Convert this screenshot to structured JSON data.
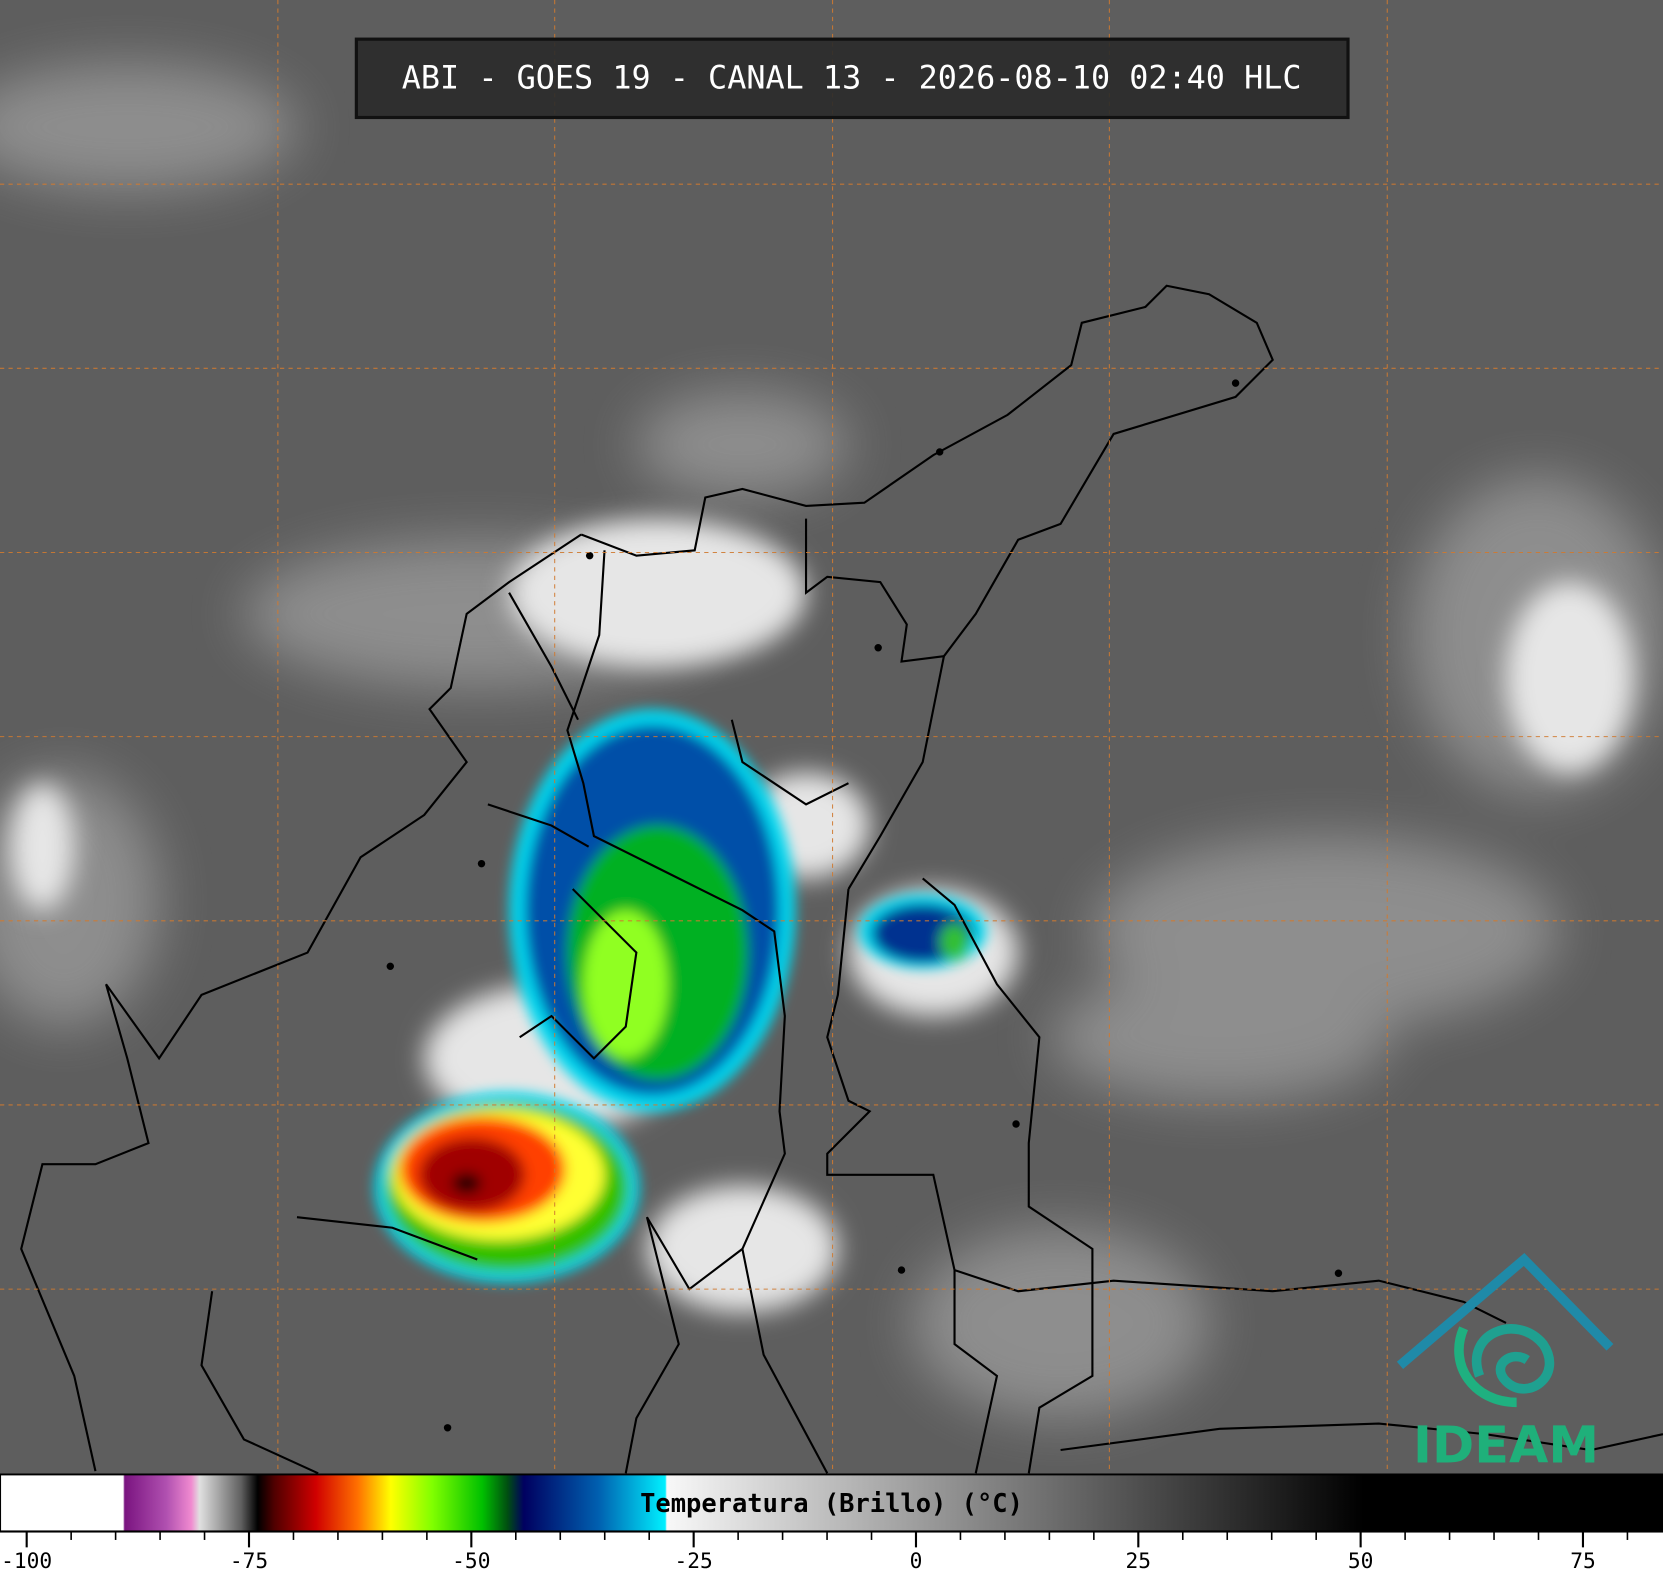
{
  "header": {
    "title": "ABI - GOES 19 - CANAL 13 - 2026-08-10 02:40 HLC"
  },
  "colorbar": {
    "label": "Temperatura (Brillo) (°C)",
    "xlim": [
      -103,
      84
    ],
    "xticks": [
      -100,
      -75,
      -50,
      -25,
      0,
      25,
      50,
      75
    ],
    "minor_ticks": [
      -95,
      -90,
      -85,
      -80,
      -70,
      -65,
      -60,
      -55,
      -45,
      -40,
      -35,
      -30,
      -20,
      -15,
      -10,
      -5,
      5,
      10,
      15,
      20,
      30,
      35,
      40,
      45,
      55,
      60,
      65,
      70,
      80
    ]
  },
  "logo": {
    "text": "IDEAM"
  }
}
